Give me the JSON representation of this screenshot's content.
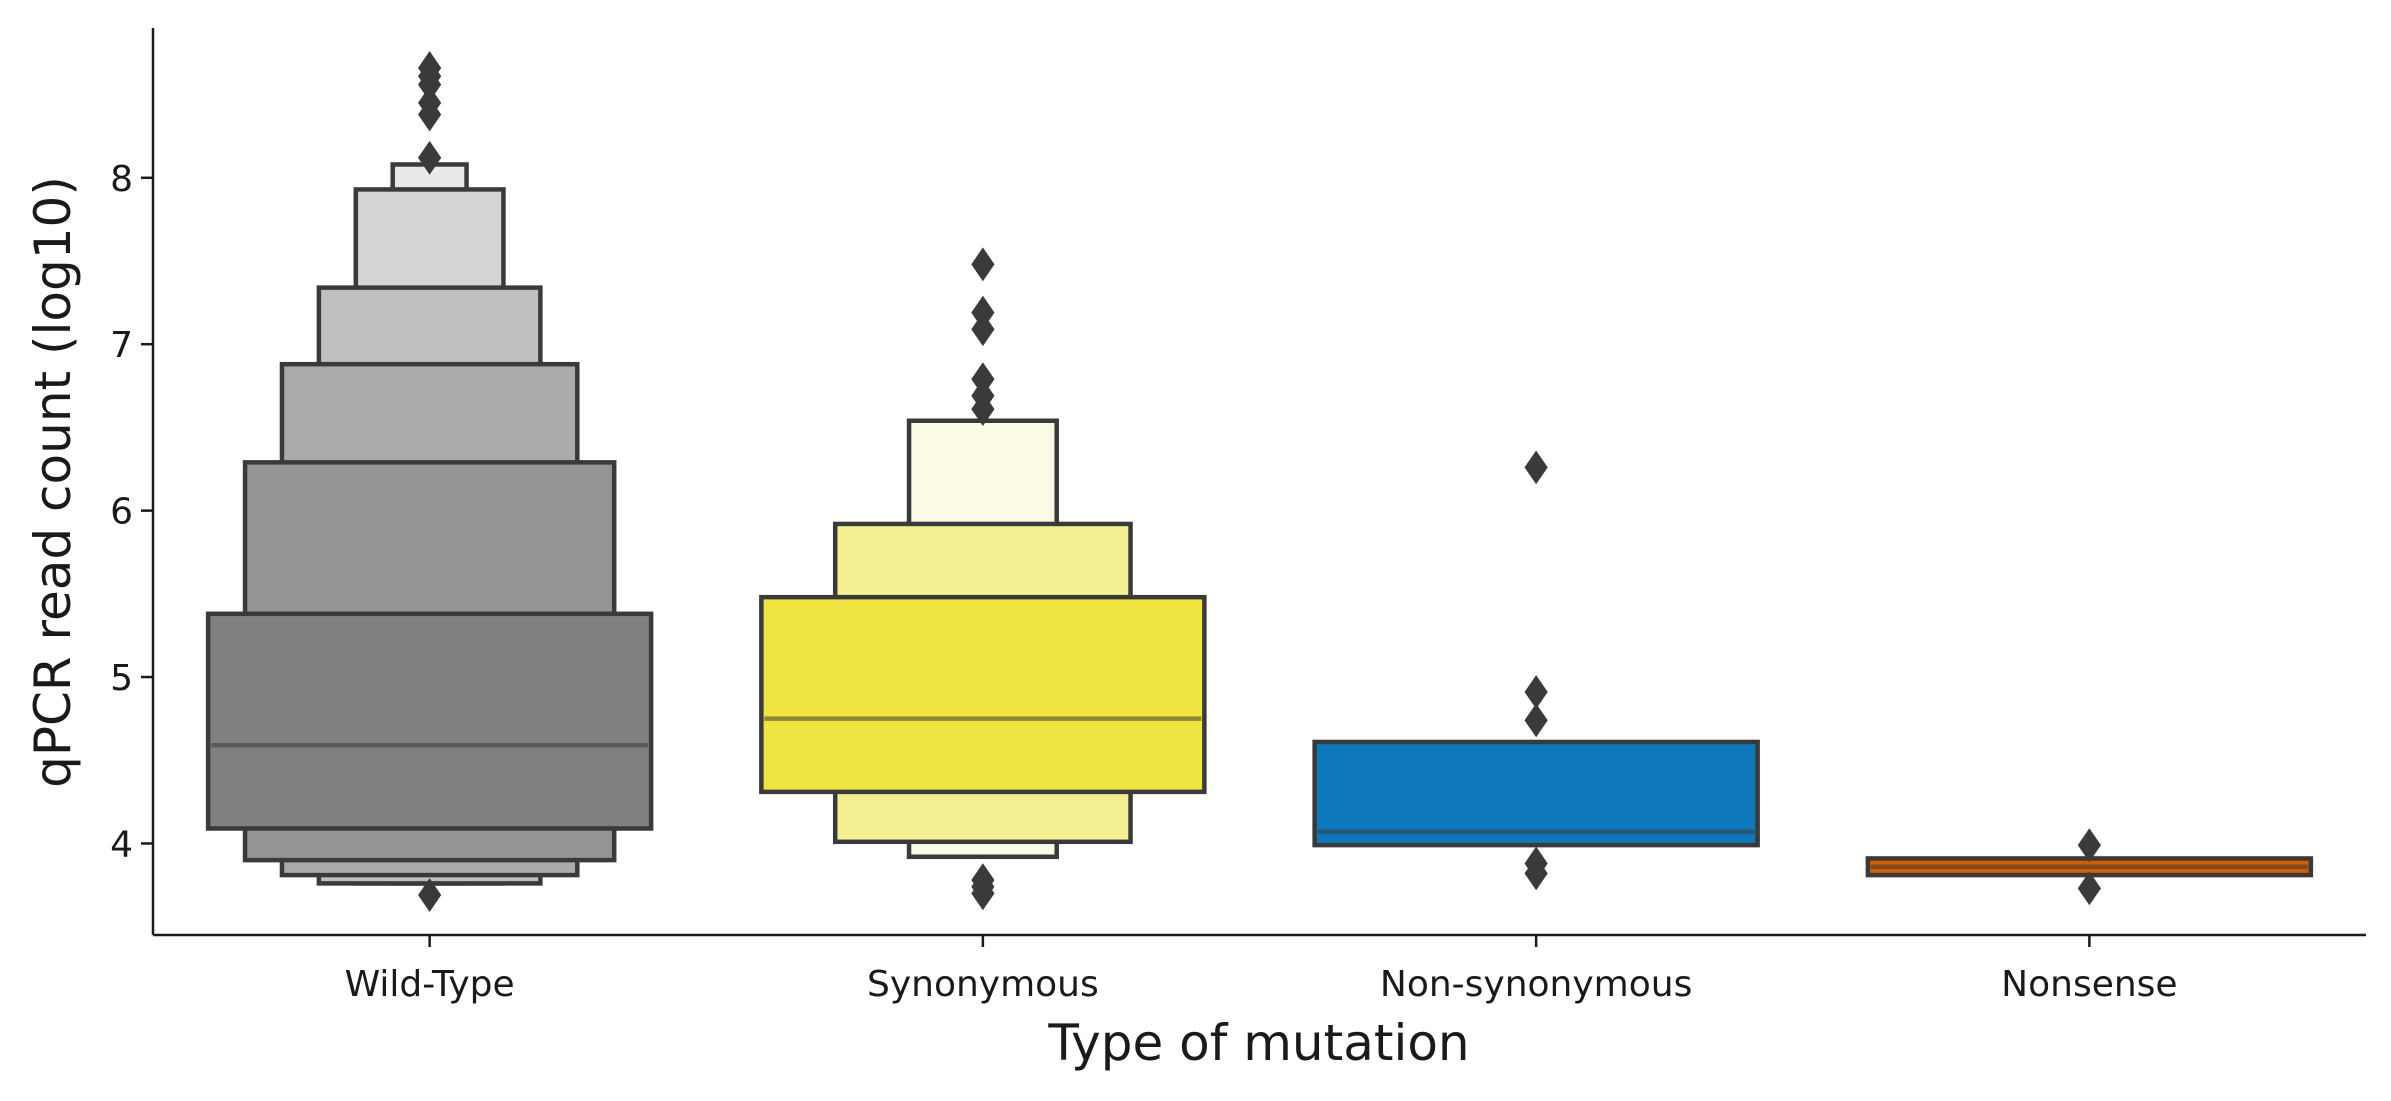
{
  "chart_data": {
    "type": "boxen",
    "title": "",
    "xlabel": "Type of mutation",
    "ylabel": "qPCR read count (log10)",
    "ylim": [
      3.45,
      8.9
    ],
    "yticks": [
      4,
      5,
      6,
      7,
      8
    ],
    "grid": false,
    "categories": [
      "Wild-Type",
      "Synonymous",
      "Non-synonymous",
      "Nonsense"
    ],
    "series": [
      {
        "category": "Wild-Type",
        "color": "#808080",
        "median": 4.59,
        "levels": [
          {
            "low": 4.09,
            "high": 5.38,
            "fill": "#808080"
          },
          {
            "low": 3.9,
            "high": 6.29,
            "fill": "#959595"
          },
          {
            "low": 3.81,
            "high": 6.88,
            "fill": "#aaaaaa"
          },
          {
            "low": 3.76,
            "high": 7.34,
            "fill": "#bfbfbf"
          },
          {
            "low": 3.76,
            "high": 7.93,
            "fill": "#d4d4d4"
          },
          {
            "low": 3.76,
            "high": 8.08,
            "fill": "#e9e9e9"
          }
        ],
        "outliers": [
          8.66,
          8.61,
          8.56,
          8.45,
          8.38,
          8.12,
          3.69
        ]
      },
      {
        "category": "Synonymous",
        "color": "#f0e442",
        "median": 4.75,
        "levels": [
          {
            "low": 4.31,
            "high": 5.48,
            "fill": "#f0e442"
          },
          {
            "low": 4.01,
            "high": 5.92,
            "fill": "#f5ef94"
          },
          {
            "low": 3.92,
            "high": 6.54,
            "fill": "#fcfbe6"
          }
        ],
        "outliers": [
          7.48,
          7.19,
          7.09,
          6.79,
          6.69,
          6.61,
          3.78,
          3.74,
          3.7
        ]
      },
      {
        "category": "Non-synonymous",
        "color": "#0072b2",
        "median": 4.07,
        "levels": [
          {
            "low": 3.99,
            "high": 4.61,
            "fill": "#0e78bb"
          }
        ],
        "outliers": [
          6.26,
          4.91,
          4.74,
          3.88,
          3.82
        ]
      },
      {
        "category": "Nonsense",
        "color": "#d55e00",
        "median": 3.86,
        "levels": [
          {
            "low": 3.81,
            "high": 3.91,
            "fill": "#d55e00"
          }
        ],
        "outliers": [
          3.99,
          3.73
        ]
      }
    ]
  }
}
